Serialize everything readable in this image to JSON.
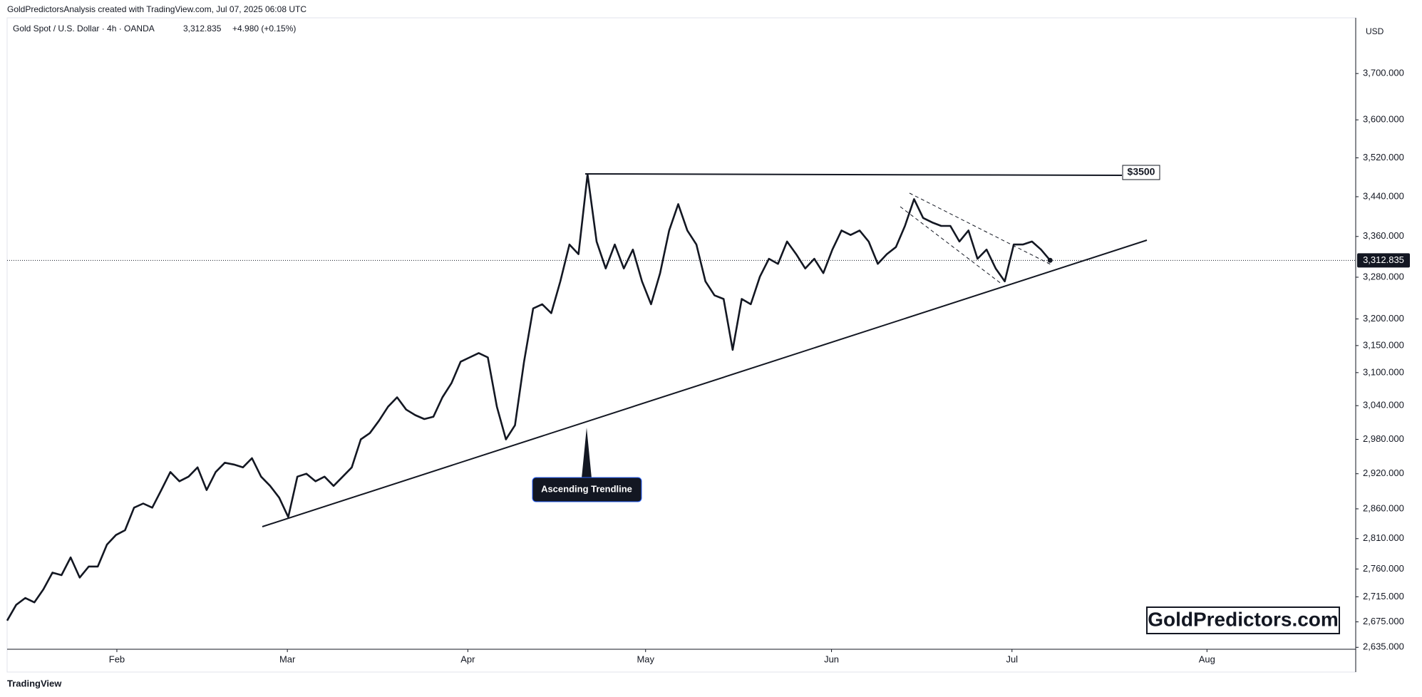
{
  "header": {
    "attribution": "GoldPredictorsAnalysis created with TradingView.com, Jul 07, 2025 06:08 UTC",
    "logo": "TradingView"
  },
  "chart_data": {
    "type": "line",
    "symbol": "Gold Spot / U.S. Dollar · 4h · OANDA",
    "change": "+4.980 (+0.15%)",
    "currency": "USD",
    "color": "#131722",
    "yscale": "log",
    "grid": false,
    "last_price": {
      "value": 3312.835,
      "label": "3,312.835"
    },
    "values": [
      2677,
      2702,
      2713,
      2706,
      2727,
      2754,
      2750,
      2779,
      2746,
      2764,
      2764,
      2800,
      2816,
      2824,
      2862,
      2869,
      2862,
      2892,
      2923,
      2907,
      2915,
      2931,
      2892,
      2923,
      2939,
      2936,
      2931,
      2947,
      2915,
      2899,
      2879,
      2846,
      2915,
      2920,
      2907,
      2915,
      2899,
      2915,
      2931,
      2980,
      2991,
      3013,
      3038,
      3055,
      3033,
      3023,
      3016,
      3020,
      3055,
      3081,
      3120,
      3128,
      3136,
      3128,
      3038,
      2980,
      3005,
      3120,
      3220,
      3228,
      3211,
      3272,
      3344,
      3325,
      3486,
      3350,
      3297,
      3344,
      3297,
      3334,
      3272,
      3228,
      3288,
      3372,
      3425,
      3372,
      3344,
      3272,
      3245,
      3238,
      3142,
      3238,
      3228,
      3281,
      3316,
      3306,
      3350,
      3325,
      3297,
      3316,
      3288,
      3334,
      3372,
      3363,
      3372,
      3350,
      3306,
      3325,
      3339,
      3381,
      3435,
      3397,
      3388,
      3381,
      3381,
      3350,
      3372,
      3316,
      3334,
      3297,
      3272,
      3344,
      3344,
      3350,
      3334,
      3313
    ],
    "xlim": [
      0,
      148.7
    ],
    "xticks": [
      {
        "value": 12.1,
        "label": "Feb"
      },
      {
        "value": 30.9,
        "label": "Mar"
      },
      {
        "value": 50.8,
        "label": "Apr"
      },
      {
        "value": 70.4,
        "label": "May"
      },
      {
        "value": 90.9,
        "label": "Jun"
      },
      {
        "value": 110.8,
        "label": "Jul"
      },
      {
        "value": 132.3,
        "label": "Aug"
      }
    ],
    "ylim": [
      2632,
      3824
    ],
    "yticks": [
      {
        "value": 3700,
        "label": "3,700.000"
      },
      {
        "value": 3600,
        "label": "3,600.000"
      },
      {
        "value": 3520,
        "label": "3,520.000"
      },
      {
        "value": 3440,
        "label": "3,440.000"
      },
      {
        "value": 3360,
        "label": "3,360.000"
      },
      {
        "value": 3280,
        "label": "3,280.000"
      },
      {
        "value": 3200,
        "label": "3,200.000"
      },
      {
        "value": 3150,
        "label": "3,150.000"
      },
      {
        "value": 3100,
        "label": "3,100.000"
      },
      {
        "value": 3040,
        "label": "3,040.000"
      },
      {
        "value": 2980,
        "label": "2,980.000"
      },
      {
        "value": 2920,
        "label": "2,920.000"
      },
      {
        "value": 2860,
        "label": "2,860.000"
      },
      {
        "value": 2810,
        "label": "2,810.000"
      },
      {
        "value": 2760,
        "label": "2,760.000"
      },
      {
        "value": 2715,
        "label": "2,715.000"
      },
      {
        "value": 2675,
        "label": "2,675.000"
      },
      {
        "value": 2635,
        "label": "2,635.000"
      }
    ],
    "annotations": {
      "resistance": "$3500",
      "trendline": "Ascending Trendline",
      "watermark": "GoldPredictors.com"
    }
  }
}
